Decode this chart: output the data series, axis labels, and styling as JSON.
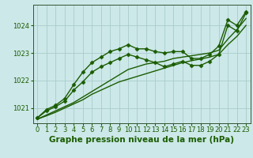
{
  "title": "Graphe pression niveau de la mer (hPa)",
  "bg_color": "#cce8e8",
  "grid_color": "#aacccc",
  "line_color": "#1a5c00",
  "x_ticks": [
    0,
    1,
    2,
    3,
    4,
    5,
    6,
    7,
    8,
    9,
    10,
    11,
    12,
    13,
    14,
    15,
    16,
    17,
    18,
    19,
    20,
    21,
    22,
    23
  ],
  "y_ticks": [
    1021,
    1022,
    1023,
    1024
  ],
  "ylim": [
    1020.45,
    1024.75
  ],
  "xlim": [
    -0.5,
    23.5
  ],
  "lines": [
    {
      "y": [
        1020.65,
        1020.95,
        1021.1,
        1021.35,
        1021.85,
        1022.3,
        1022.65,
        1022.85,
        1023.05,
        1023.15,
        1023.3,
        1023.15,
        1023.15,
        1023.05,
        1023.0,
        1023.05,
        1023.05,
        1022.8,
        1022.8,
        1022.95,
        1023.25,
        1024.2,
        1024.0,
        1024.5
      ],
      "marker": true
    },
    {
      "y": [
        1020.65,
        1020.9,
        1021.05,
        1021.25,
        1021.65,
        1021.95,
        1022.3,
        1022.5,
        1022.65,
        1022.8,
        1022.95,
        1022.85,
        1022.75,
        1022.65,
        1022.5,
        1022.6,
        1022.7,
        1022.55,
        1022.55,
        1022.7,
        1022.95,
        1024.0,
        1023.8,
        1024.45
      ],
      "marker": true
    },
    {
      "y": [
        1020.6,
        1020.75,
        1020.9,
        1021.05,
        1021.2,
        1021.4,
        1021.6,
        1021.8,
        1022.0,
        1022.2,
        1022.4,
        1022.5,
        1022.6,
        1022.65,
        1022.7,
        1022.8,
        1022.85,
        1022.9,
        1022.95,
        1023.0,
        1023.1,
        1023.5,
        1023.85,
        1024.25
      ],
      "marker": false
    },
    {
      "y": [
        1020.6,
        1020.72,
        1020.85,
        1021.0,
        1021.15,
        1021.3,
        1021.5,
        1021.65,
        1021.8,
        1021.95,
        1022.05,
        1022.15,
        1022.25,
        1022.35,
        1022.45,
        1022.55,
        1022.65,
        1022.72,
        1022.78,
        1022.85,
        1022.95,
        1023.3,
        1023.6,
        1024.0
      ],
      "marker": false
    }
  ],
  "marker": "D",
  "markersize": 2.5,
  "linewidth": 1.0,
  "title_fontsize": 7.5,
  "tick_fontsize": 6.0,
  "tick_label_color": "#1a5c00",
  "spine_color": "#335533"
}
